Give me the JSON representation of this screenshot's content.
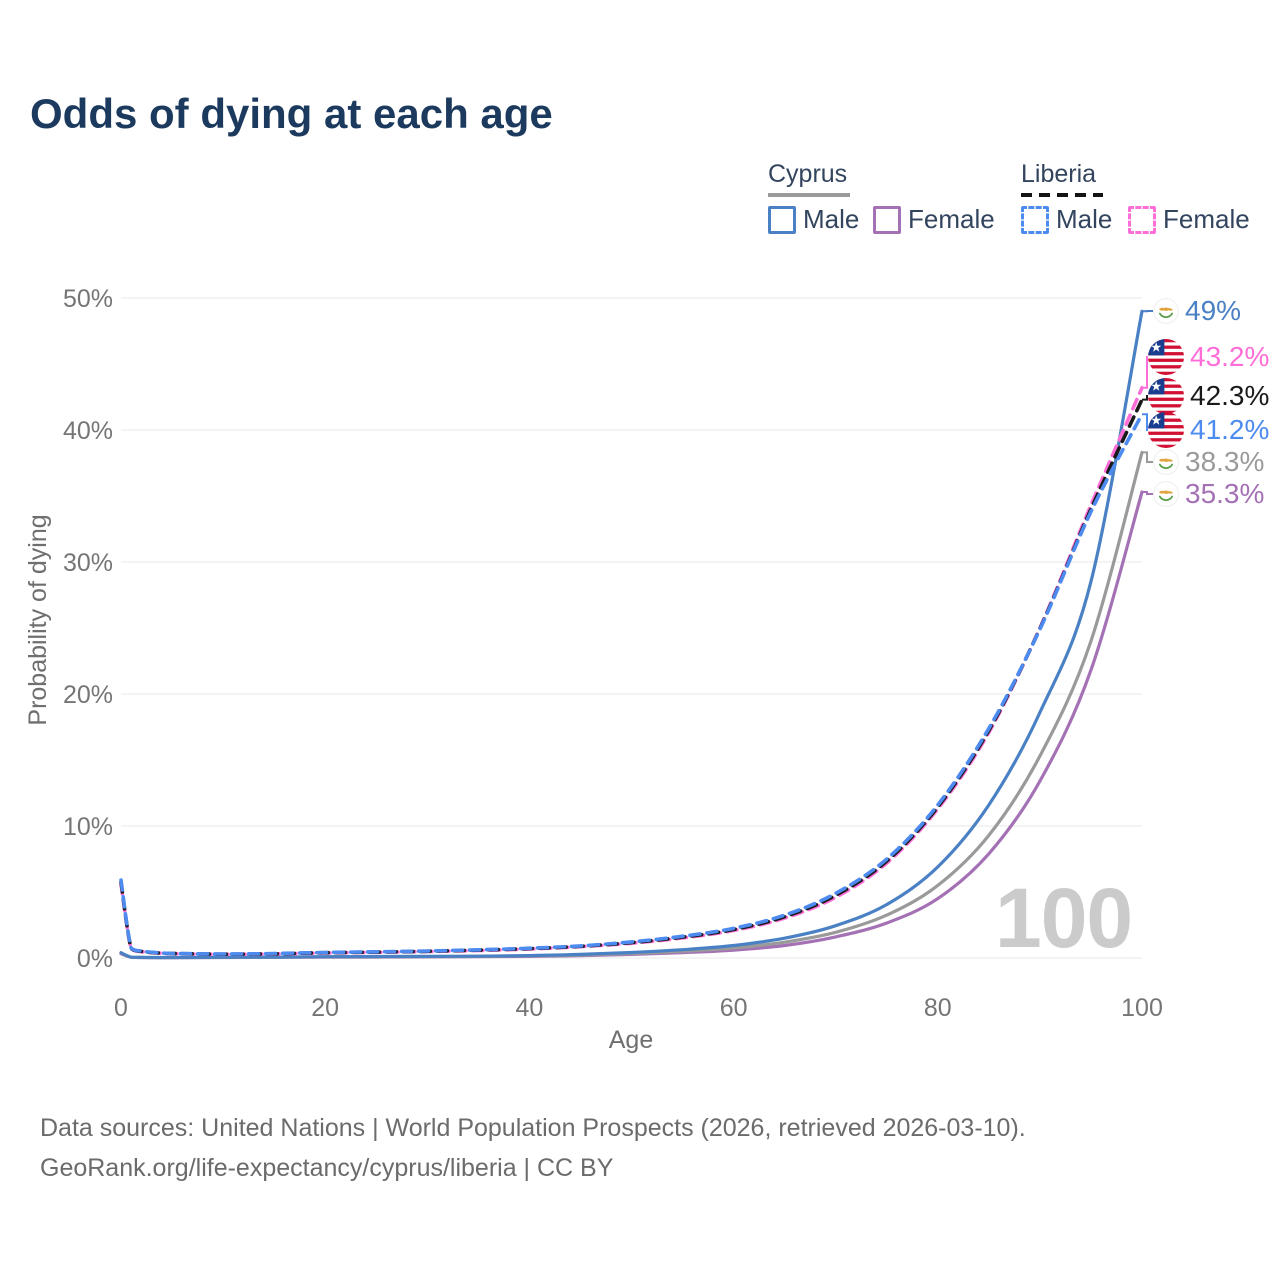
{
  "title": "Odds of dying at each age",
  "legend": {
    "cyprus": {
      "label": "Cyprus",
      "male": "Male",
      "female": "Female"
    },
    "liberia": {
      "label": "Liberia",
      "male": "Male",
      "female": "Female"
    }
  },
  "watermark": "100",
  "footer": {
    "line1": "Data sources: United Nations | World Population Prospects (2026, retrieved 2026-03-10).",
    "line2": "GeoRank.org/life-expectancy/cyprus/liberia | CC BY"
  },
  "colors": {
    "title": "#1c3a5e",
    "cyprus_male": "#4a80c4",
    "cyprus_female": "#a471b5",
    "cyprus_combined": "#9a9a9a",
    "liberia_male": "#4d8bf0",
    "liberia_female": "#ff6ed8",
    "liberia_combined": "#1a1a1a",
    "grid": "#e9e9e9",
    "axis_text": "#757575"
  },
  "chart_data": {
    "type": "line",
    "title": "Odds of dying at each age",
    "xlabel": "Age",
    "ylabel": "Probability of dying",
    "xlim": [
      0,
      100
    ],
    "ylim": [
      0,
      50
    ],
    "xticks": [
      0,
      20,
      40,
      60,
      80,
      100
    ],
    "ytick_values": [
      0,
      10,
      20,
      30,
      40,
      50
    ],
    "ytick_labels": [
      "0%",
      "10%",
      "20%",
      "30%",
      "40%",
      "50%"
    ],
    "grid": true,
    "legend_position": "top-right",
    "ages": [
      0,
      1,
      2,
      3,
      4,
      5,
      10,
      15,
      20,
      25,
      30,
      35,
      40,
      45,
      50,
      55,
      60,
      65,
      70,
      75,
      80,
      85,
      90,
      95,
      100
    ],
    "series": [
      {
        "name": "Cyprus Female",
        "country": "Cyprus",
        "sex": "female",
        "line": "solid",
        "color": "#a471b5",
        "flag": "cyprus",
        "end_label": "35.3%",
        "end_value": 35.3,
        "values": [
          0.32,
          0.05,
          0.036,
          0.031,
          0.029,
          0.027,
          0.035,
          0.05,
          0.06,
          0.07,
          0.08,
          0.1,
          0.12,
          0.18,
          0.27,
          0.41,
          0.6,
          0.95,
          1.6,
          2.65,
          4.5,
          7.9,
          13.4,
          21.8,
          35.3
        ]
      },
      {
        "name": "Cyprus",
        "country": "Cyprus",
        "sex": "combined",
        "line": "solid",
        "color": "#9a9a9a",
        "flag": "cyprus",
        "end_label": "38.3%",
        "end_value": 38.3,
        "values": [
          0.36,
          0.055,
          0.04,
          0.035,
          0.033,
          0.031,
          0.042,
          0.06,
          0.08,
          0.09,
          0.1,
          0.12,
          0.15,
          0.22,
          0.34,
          0.51,
          0.76,
          1.2,
          1.95,
          3.25,
          5.5,
          9.3,
          15.3,
          24.0,
          38.3
        ]
      },
      {
        "name": "Cyprus Male",
        "country": "Cyprus",
        "sex": "male",
        "line": "solid",
        "color": "#4a80c4",
        "flag": "cyprus",
        "end_label": "49%",
        "end_value": 49,
        "values": [
          0.4,
          0.06,
          0.045,
          0.04,
          0.038,
          0.036,
          0.05,
          0.07,
          0.1,
          0.11,
          0.12,
          0.14,
          0.18,
          0.27,
          0.42,
          0.63,
          0.95,
          1.5,
          2.45,
          4.05,
          6.9,
          11.6,
          18.6,
          28.5,
          49.0
        ]
      },
      {
        "name": "Liberia Female",
        "country": "Liberia",
        "sex": "female",
        "line": "dashed",
        "color": "#ff6ed8",
        "flag": "liberia",
        "end_label": "43.2%",
        "end_value": 43.2,
        "values": [
          5.6,
          0.7,
          0.48,
          0.41,
          0.36,
          0.33,
          0.28,
          0.31,
          0.38,
          0.43,
          0.49,
          0.57,
          0.68,
          0.86,
          1.12,
          1.52,
          2.08,
          3.02,
          4.6,
          7.2,
          11.3,
          17.1,
          25.0,
          34.3,
          43.2
        ]
      },
      {
        "name": "Liberia",
        "country": "Liberia",
        "sex": "combined",
        "line": "dashed",
        "color": "#1a1a1a",
        "flag": "liberia",
        "end_label": "42.3%",
        "end_value": 42.3,
        "values": [
          5.75,
          0.72,
          0.5,
          0.42,
          0.37,
          0.34,
          0.29,
          0.32,
          0.4,
          0.45,
          0.51,
          0.6,
          0.71,
          0.89,
          1.17,
          1.58,
          2.16,
          3.13,
          4.75,
          7.35,
          11.45,
          17.25,
          24.95,
          34.0,
          42.3
        ]
      },
      {
        "name": "Liberia Male",
        "country": "Liberia",
        "sex": "male",
        "line": "dashed",
        "color": "#4d8bf0",
        "flag": "liberia",
        "end_label": "41.2%",
        "end_value": 41.2,
        "values": [
          5.9,
          0.75,
          0.52,
          0.44,
          0.38,
          0.35,
          0.3,
          0.34,
          0.42,
          0.47,
          0.53,
          0.62,
          0.74,
          0.92,
          1.22,
          1.65,
          2.25,
          3.25,
          4.9,
          7.5,
          11.6,
          17.4,
          24.9,
          33.8,
          41.2
        ]
      }
    ]
  }
}
